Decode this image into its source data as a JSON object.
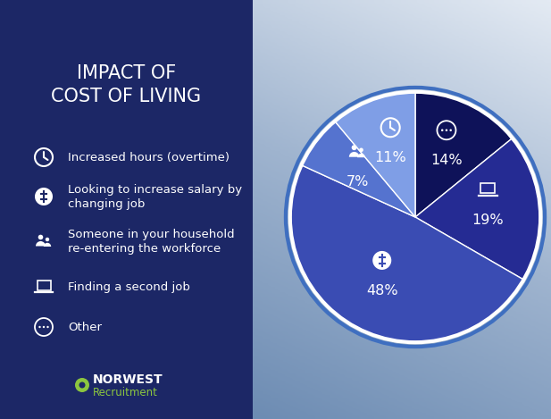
{
  "chart_data": {
    "type": "pie",
    "title": "IMPACT OF\nCOST OF LIVING",
    "categories": [
      "Increased hours (overtime)",
      "Looking to increase salary by changing job",
      "Someone in your household re-entering the workforce",
      "Finding a second job",
      "Other"
    ],
    "values": [
      11,
      48,
      7,
      19,
      14
    ],
    "value_labels": [
      "11%",
      "48%",
      "7%",
      "19%",
      "14%"
    ],
    "colors": [
      "#7f9ee6",
      "#3a4cb3",
      "#5573cf",
      "#252b93",
      "#0e1259"
    ],
    "data_labels": true
  },
  "logo": {
    "name": "NORWEST",
    "tagline": "Recruitment"
  }
}
